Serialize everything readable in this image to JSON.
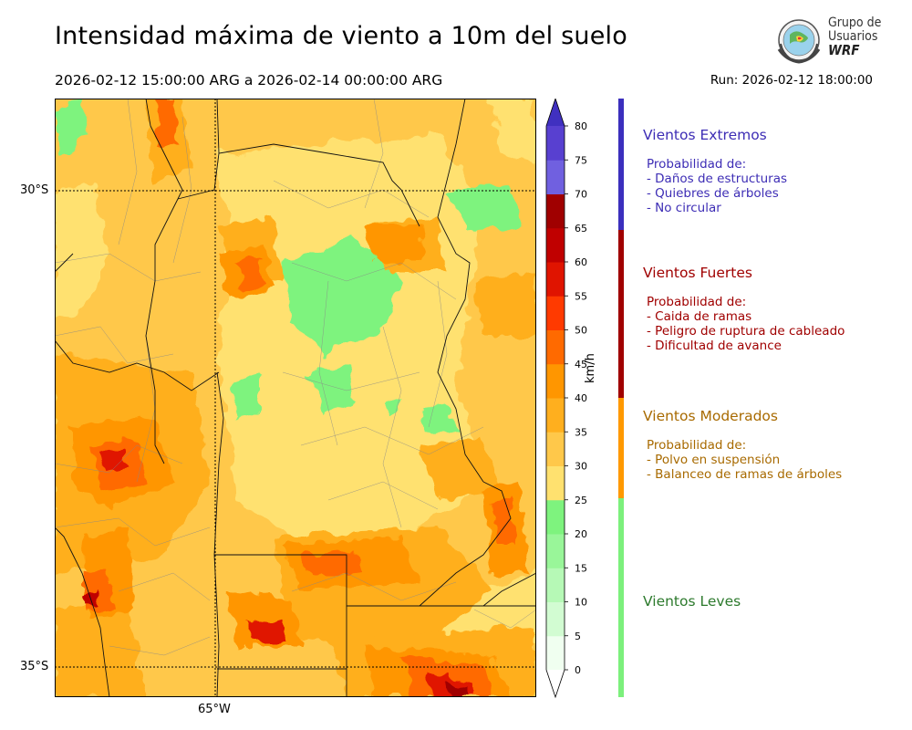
{
  "title": "Intensidad máxima de viento a 10m del suelo",
  "subtitle": "2026-02-12 15:00:00 ARG  a  2026-02-14 00:00:00 ARG",
  "run": "Run: 2026-02-12 18:00:00",
  "logo": {
    "line1": "Grupo de",
    "line2": "Usuarios",
    "line3": "WRF"
  },
  "map": {
    "lat_labels": [
      "30°S",
      "35°S"
    ],
    "lon_labels": [
      "65°W"
    ]
  },
  "colorbar": {
    "unit": "km/h",
    "ticks": [
      "0",
      "5",
      "10",
      "15",
      "20",
      "25",
      "30",
      "35",
      "40",
      "45",
      "50",
      "55",
      "60",
      "65",
      "70",
      "75",
      "80"
    ],
    "colors": [
      "#f0fff0",
      "#d2fcd2",
      "#b6f9b6",
      "#99f699",
      "#7ef37e",
      "#ffe16f",
      "#ffc84a",
      "#ffaf1e",
      "#ff9600",
      "#ff6a00",
      "#ff3a00",
      "#e01400",
      "#c00000",
      "#a00000",
      "#7060e0",
      "#5840d0",
      "#4030c0"
    ]
  },
  "categories": [
    {
      "title": "Vientos Extremos",
      "color": "#3d2db5",
      "bar_color": "#3b2fbd",
      "lines": [
        "Probabilidad de:",
        "- Daños de estructuras",
        "- Quiebres de árboles",
        "- No circular"
      ]
    },
    {
      "title": "Vientos Fuertes",
      "color": "#a00000",
      "bar_color": "#a00000",
      "lines": [
        "Probabilidad de:",
        "- Caida de ramas",
        "- Peligro de ruptura de cableado",
        "- Dificultad de avance"
      ]
    },
    {
      "title": "Vientos Moderados",
      "color": "#a86a00",
      "bar_color": "#ff9900",
      "lines": [
        "Probabilidad de:",
        "- Polvo en suspensión",
        "- Balanceo de ramas de árboles"
      ]
    },
    {
      "title": "Vientos Leves",
      "color": "#2d7a2d",
      "bar_color": "#7cf07c",
      "lines": []
    }
  ]
}
